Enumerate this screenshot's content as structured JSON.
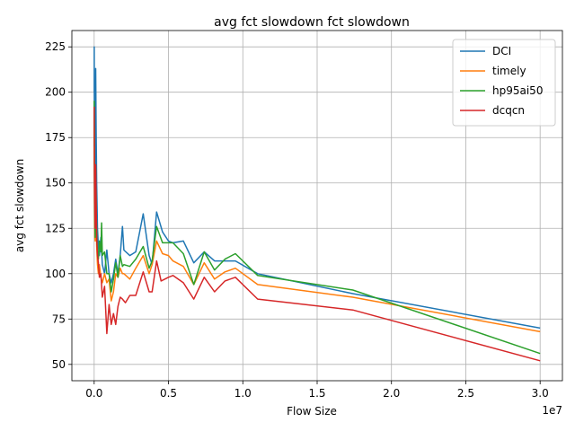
{
  "chart_data": {
    "type": "line",
    "title": "avg fct slowdown fct slowdown",
    "xlabel": "Flow Size",
    "ylabel": "avg fct slowdown",
    "x_offset_label": "1e7",
    "xlim": [
      -1500000,
      31500000
    ],
    "ylim": [
      41,
      234
    ],
    "grid": true,
    "legend_position": "top-right",
    "x_ticks": [
      0,
      5000000,
      10000000,
      15000000,
      20000000,
      25000000,
      30000000
    ],
    "x_tick_labels": [
      "0.0",
      "0.5",
      "1.0",
      "1.5",
      "2.0",
      "2.5",
      "3.0"
    ],
    "y_ticks": [
      50,
      75,
      100,
      125,
      150,
      175,
      200,
      225
    ],
    "y_tick_labels": [
      "50",
      "75",
      "100",
      "125",
      "150",
      "175",
      "200",
      "225"
    ],
    "series": [
      {
        "name": "DCI",
        "color": "#1f77b4",
        "points": [
          [
            2000,
            200
          ],
          [
            5000,
            225
          ],
          [
            10000,
            190
          ],
          [
            15000,
            175
          ],
          [
            20000,
            160
          ],
          [
            30000,
            150
          ],
          [
            50000,
            140
          ],
          [
            70000,
            130
          ],
          [
            100000,
            213
          ],
          [
            130000,
            180
          ],
          [
            170000,
            150
          ],
          [
            220000,
            125
          ],
          [
            280000,
            115
          ],
          [
            350000,
            110
          ],
          [
            450000,
            120
          ],
          [
            550000,
            105
          ],
          [
            700000,
            100
          ],
          [
            850000,
            113
          ],
          [
            1000000,
            100
          ],
          [
            1150000,
            95
          ],
          [
            1300000,
            100
          ],
          [
            1450000,
            108
          ],
          [
            1600000,
            100
          ],
          [
            1750000,
            110
          ],
          [
            1900000,
            126
          ],
          [
            2000000,
            113
          ],
          [
            2400000,
            110
          ],
          [
            2800000,
            112
          ],
          [
            3300000,
            133
          ],
          [
            3700000,
            110
          ],
          [
            3900000,
            105
          ],
          [
            4200000,
            134
          ],
          [
            4600000,
            123
          ],
          [
            5000000,
            118
          ],
          [
            5300000,
            117
          ],
          [
            6000000,
            118
          ],
          [
            6700000,
            106
          ],
          [
            7400000,
            112
          ],
          [
            8100000,
            107
          ],
          [
            8800000,
            107
          ],
          [
            9500000,
            107
          ],
          [
            11000000,
            100
          ],
          [
            17400000,
            89
          ],
          [
            30000000,
            70
          ]
        ]
      },
      {
        "name": "timely",
        "color": "#ff7f0e",
        "points": [
          [
            2000,
            160
          ],
          [
            5000,
            180
          ],
          [
            10000,
            165
          ],
          [
            15000,
            150
          ],
          [
            20000,
            140
          ],
          [
            30000,
            128
          ],
          [
            50000,
            120
          ],
          [
            70000,
            118
          ],
          [
            100000,
            150
          ],
          [
            130000,
            130
          ],
          [
            170000,
            115
          ],
          [
            220000,
            105
          ],
          [
            280000,
            100
          ],
          [
            350000,
            105
          ],
          [
            450000,
            98
          ],
          [
            550000,
            95
          ],
          [
            700000,
            100
          ],
          [
            850000,
            95
          ],
          [
            1000000,
            97
          ],
          [
            1150000,
            85
          ],
          [
            1300000,
            90
          ],
          [
            1450000,
            100
          ],
          [
            1600000,
            98
          ],
          [
            1750000,
            103
          ],
          [
            1900000,
            100
          ],
          [
            2000000,
            100
          ],
          [
            2400000,
            97
          ],
          [
            2800000,
            103
          ],
          [
            3300000,
            110
          ],
          [
            3700000,
            100
          ],
          [
            3900000,
            105
          ],
          [
            4200000,
            118
          ],
          [
            4600000,
            111
          ],
          [
            5000000,
            110
          ],
          [
            5300000,
            107
          ],
          [
            6000000,
            104
          ],
          [
            6700000,
            94
          ],
          [
            7400000,
            106
          ],
          [
            8100000,
            97
          ],
          [
            8800000,
            101
          ],
          [
            9500000,
            103
          ],
          [
            11000000,
            94
          ],
          [
            17400000,
            87
          ],
          [
            30000000,
            68
          ]
        ]
      },
      {
        "name": "hp95ai50",
        "color": "#2ca02c",
        "points": [
          [
            2000,
            170
          ],
          [
            5000,
            195
          ],
          [
            10000,
            175
          ],
          [
            15000,
            160
          ],
          [
            20000,
            148
          ],
          [
            30000,
            135
          ],
          [
            50000,
            126
          ],
          [
            70000,
            120
          ],
          [
            100000,
            158
          ],
          [
            130000,
            140
          ],
          [
            170000,
            122
          ],
          [
            220000,
            112
          ],
          [
            280000,
            108
          ],
          [
            350000,
            118
          ],
          [
            450000,
            112
          ],
          [
            500000,
            128
          ],
          [
            550000,
            110
          ],
          [
            700000,
            112
          ],
          [
            850000,
            100
          ],
          [
            1000000,
            100
          ],
          [
            1150000,
            90
          ],
          [
            1300000,
            97
          ],
          [
            1450000,
            106
          ],
          [
            1600000,
            98
          ],
          [
            1750000,
            110
          ],
          [
            1900000,
            104
          ],
          [
            2000000,
            105
          ],
          [
            2400000,
            104
          ],
          [
            2800000,
            108
          ],
          [
            3300000,
            115
          ],
          [
            3700000,
            103
          ],
          [
            3900000,
            107
          ],
          [
            4200000,
            126
          ],
          [
            4600000,
            117
          ],
          [
            5000000,
            117
          ],
          [
            5300000,
            117
          ],
          [
            6000000,
            111
          ],
          [
            6700000,
            94
          ],
          [
            7400000,
            112
          ],
          [
            8100000,
            102
          ],
          [
            8800000,
            108
          ],
          [
            9500000,
            111
          ],
          [
            11000000,
            99
          ],
          [
            17400000,
            91
          ],
          [
            30000000,
            56
          ]
        ]
      },
      {
        "name": "dcqcn",
        "color": "#d62728",
        "points": [
          [
            2000,
            192
          ],
          [
            5000,
            185
          ],
          [
            10000,
            175
          ],
          [
            15000,
            165
          ],
          [
            20000,
            155
          ],
          [
            30000,
            143
          ],
          [
            50000,
            132
          ],
          [
            70000,
            125
          ],
          [
            100000,
            160
          ],
          [
            130000,
            140
          ],
          [
            170000,
            120
          ],
          [
            220000,
            110
          ],
          [
            280000,
            106
          ],
          [
            350000,
            98
          ],
          [
            450000,
            100
          ],
          [
            550000,
            87
          ],
          [
            700000,
            93
          ],
          [
            850000,
            67
          ],
          [
            1000000,
            83
          ],
          [
            1150000,
            72
          ],
          [
            1300000,
            78
          ],
          [
            1450000,
            72
          ],
          [
            1600000,
            82
          ],
          [
            1750000,
            87
          ],
          [
            1900000,
            86
          ],
          [
            2100000,
            84
          ],
          [
            2400000,
            88
          ],
          [
            2800000,
            88
          ],
          [
            3300000,
            101
          ],
          [
            3700000,
            90
          ],
          [
            3900000,
            90
          ],
          [
            4200000,
            107
          ],
          [
            4500000,
            96
          ],
          [
            5000000,
            98
          ],
          [
            5300000,
            99
          ],
          [
            6000000,
            95
          ],
          [
            6700000,
            86
          ],
          [
            7400000,
            98
          ],
          [
            8100000,
            90
          ],
          [
            8800000,
            96
          ],
          [
            9500000,
            98
          ],
          [
            11000000,
            86
          ],
          [
            17400000,
            80
          ],
          [
            30000000,
            52
          ]
        ]
      }
    ]
  }
}
